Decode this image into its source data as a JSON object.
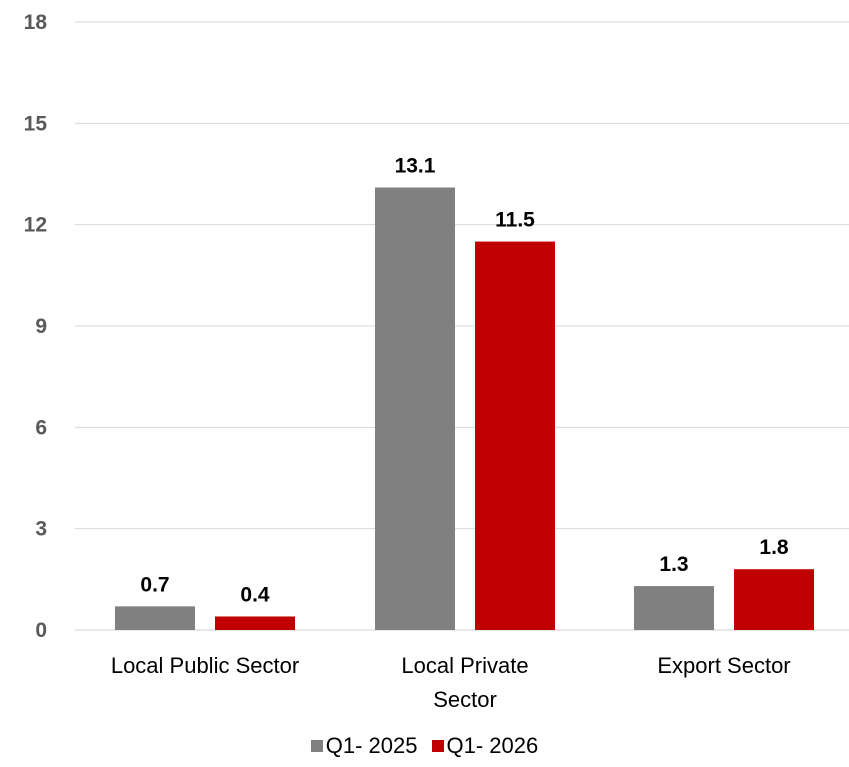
{
  "chart_data": {
    "type": "bar",
    "categories": [
      "Local Public  Sector",
      "Local Private Sector",
      "Export Sector"
    ],
    "series": [
      {
        "name": "Q1- 2025",
        "values": [
          0.7,
          13.1,
          1.3
        ],
        "color": "#808080"
      },
      {
        "name": "Q1- 2026",
        "values": [
          0.4,
          11.5,
          1.8
        ],
        "color": "#C00000"
      }
    ],
    "ylim": [
      0,
      18
    ],
    "yticks": [
      0,
      3,
      6,
      9,
      12,
      15,
      18
    ],
    "grid": true,
    "legend_position": "bottom",
    "data_labels": true
  },
  "category_lines": [
    [
      "Local Public  Sector"
    ],
    [
      "Local Private",
      "Sector"
    ],
    [
      "Export Sector"
    ]
  ]
}
